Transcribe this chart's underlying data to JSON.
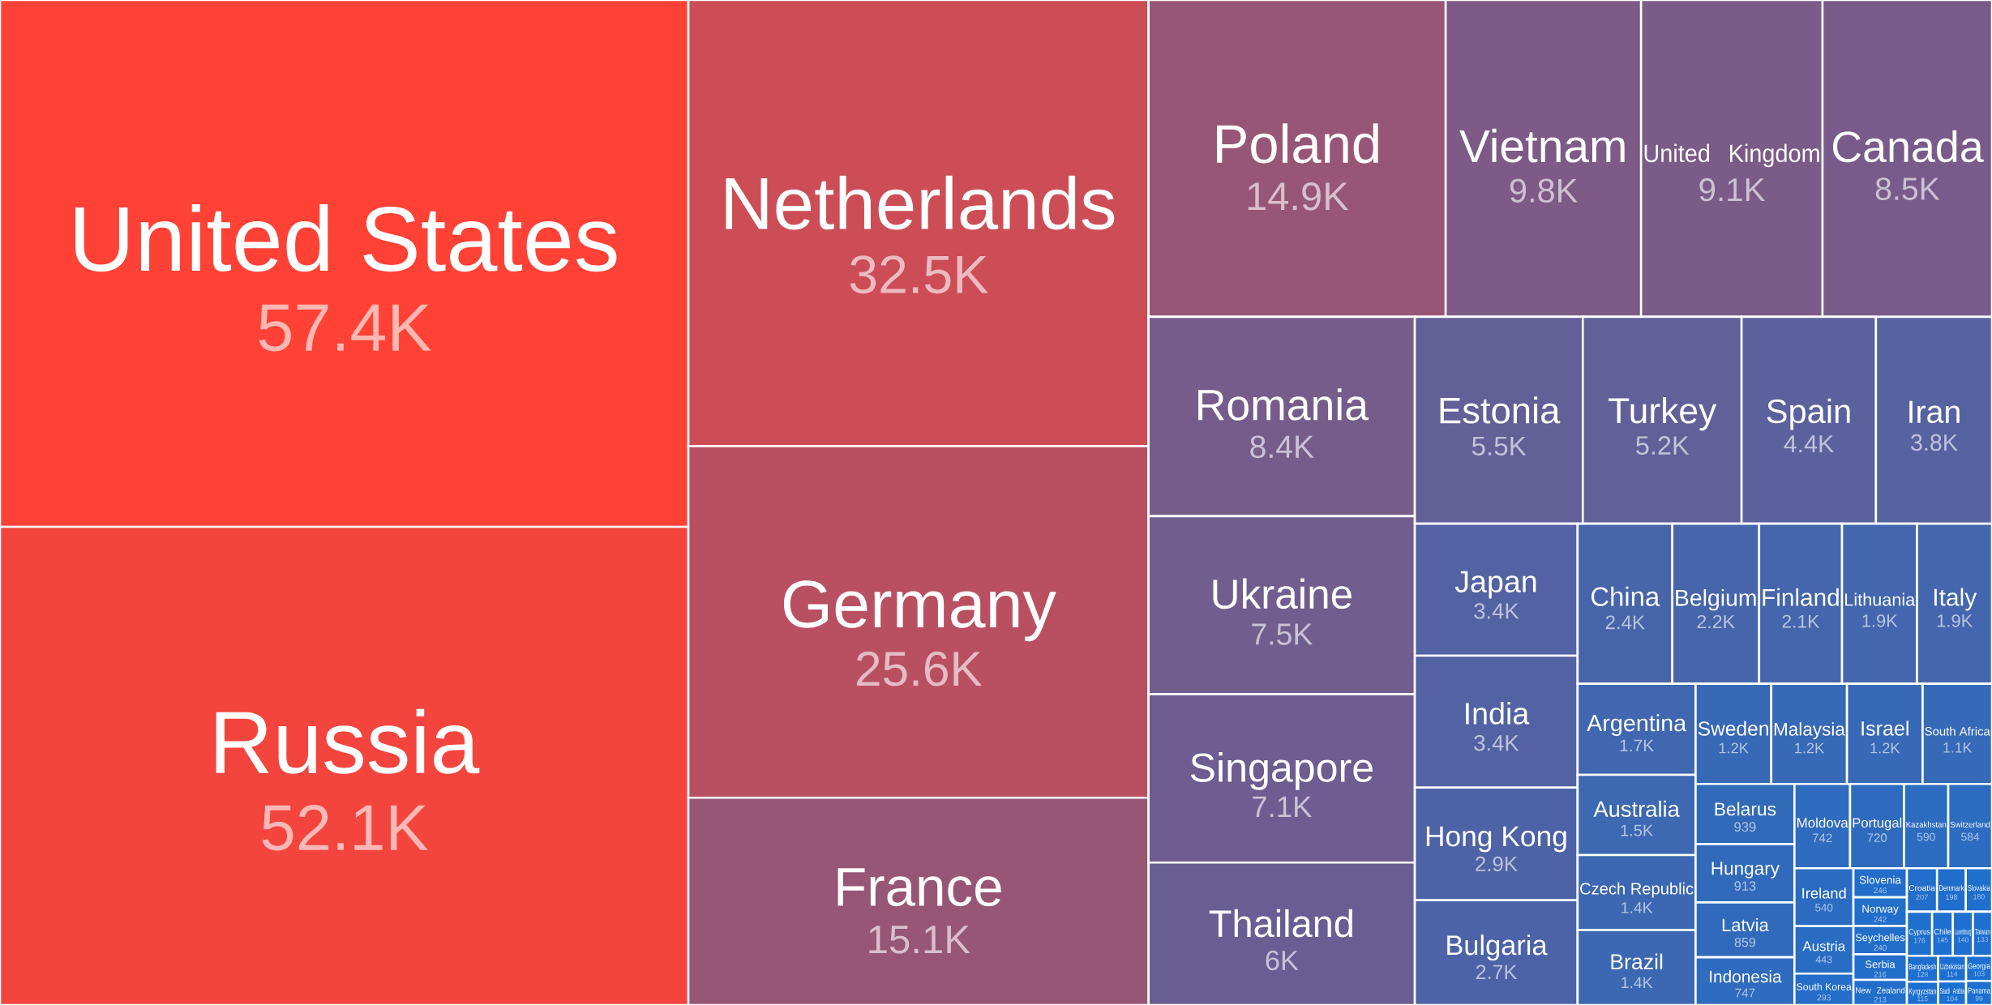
{
  "chart_data": {
    "type": "other",
    "categories": [
      "United States",
      "Russia",
      "Netherlands",
      "Germany",
      "France",
      "Poland",
      "Vietnam",
      "United Kingdom",
      "Canada",
      "Romania",
      "Ukraine",
      "Singapore",
      "Thailand",
      "Estonia",
      "Turkey",
      "Spain",
      "Iran",
      "Japan",
      "India",
      "Hong Kong",
      "Bulgaria",
      "China",
      "Belgium",
      "Finland",
      "Lithuania",
      "Italy",
      "Argentina",
      "Australia",
      "Czech Republic",
      "Brazil",
      "Sweden",
      "Malaysia",
      "Israel",
      "South Africa",
      "Belarus",
      "Hungary",
      "Latvia",
      "Indonesia",
      "Moldova",
      "Portugal",
      "Kazakhstan",
      "Switzerland",
      "Ireland",
      "Austria",
      "South Korea",
      "Slovenia",
      "Norway",
      "Seychelles",
      "Serbia",
      "New Zealand",
      "Croatia",
      "Denmark",
      "Slovakia",
      "Cyprus",
      "Chile",
      "Luxembourg",
      "Taiwan",
      "Bangladesh",
      "Kyrgyzstan",
      "Uzbekistan",
      "Saudi Arabia",
      "Georgia",
      "Panama"
    ],
    "values": [
      57400,
      52100,
      32500,
      25600,
      15100,
      14900,
      9800,
      9100,
      8500,
      8400,
      7500,
      7100,
      6000,
      5500,
      5200,
      4400,
      3800,
      3400,
      3400,
      2900,
      2700,
      2400,
      2200,
      2100,
      1900,
      1900,
      1700,
      1500,
      1400,
      1400,
      1200,
      1200,
      1200,
      1100,
      939,
      913,
      859,
      747,
      742,
      720,
      590,
      584,
      540,
      443,
      293,
      246,
      242,
      240,
      216,
      213,
      207,
      198,
      180,
      176,
      145,
      140,
      133,
      128,
      115,
      114,
      104,
      103,
      99
    ],
    "value_labels": [
      "57.4K",
      "52.1K",
      "32.5K",
      "25.6K",
      "15.1K",
      "14.9K",
      "9.8K",
      "9.1K",
      "8.5K",
      "8.4K",
      "7.5K",
      "7.1K",
      "6K",
      "5.5K",
      "5.2K",
      "4.4K",
      "3.8K",
      "3.4K",
      "3.4K",
      "2.9K",
      "2.7K",
      "2.4K",
      "2.2K",
      "2.1K",
      "1.9K",
      "1.9K",
      "1.7K",
      "1.5K",
      "1.4K",
      "1.4K",
      "1.2K",
      "1.2K",
      "1.2K",
      "1.1K",
      "939",
      "913",
      "859",
      "747",
      "742",
      "720",
      "590",
      "584",
      "540",
      "443",
      "293",
      "246",
      "242",
      "240",
      "216",
      "213",
      "207",
      "198",
      "180",
      "176",
      "145",
      "140",
      "133",
      "128",
      "115",
      "114",
      "104",
      "103",
      "99"
    ],
    "colors": [
      "#ff4136",
      "#f3453e",
      "#cc4d56",
      "#b95062",
      "#985675",
      "#985676",
      "#7e5a86",
      "#7b5b88",
      "#785b8a",
      "#765c8b",
      "#715d8e",
      "#6e5d90",
      "#685e94",
      "#635f97",
      "#616099",
      "#5b619d",
      "#5762a0",
      "#5362a2",
      "#5362a2",
      "#4e63a5",
      "#4c64a7",
      "#4865aa",
      "#4665ab",
      "#4566ac",
      "#4366ae",
      "#4366ae",
      "#4067b0",
      "#3d68b2",
      "#3c68b3",
      "#3c68b3",
      "#3869b6",
      "#3869b6",
      "#3869b6",
      "#3669b7",
      "#326aba",
      "#326abb",
      "#316abc",
      "#2f6bbe",
      "#2f6bbe",
      "#2e6bbe",
      "#2c6cc1",
      "#2c6cc1",
      "#2b6cc2",
      "#296cc4",
      "#246dc8",
      "#226eca",
      "#226eca",
      "#226eca",
      "#216ecb",
      "#216ecb",
      "#216ecb",
      "#206ecc",
      "#1f6fcd",
      "#1f6fcd",
      "#1e6fcf",
      "#1e6fcf",
      "#1d6fd0",
      "#1d6fd0",
      "#1c6fd1",
      "#1c6fd1",
      "#1b70d2",
      "#1b70d2",
      "#1b70d2"
    ]
  }
}
